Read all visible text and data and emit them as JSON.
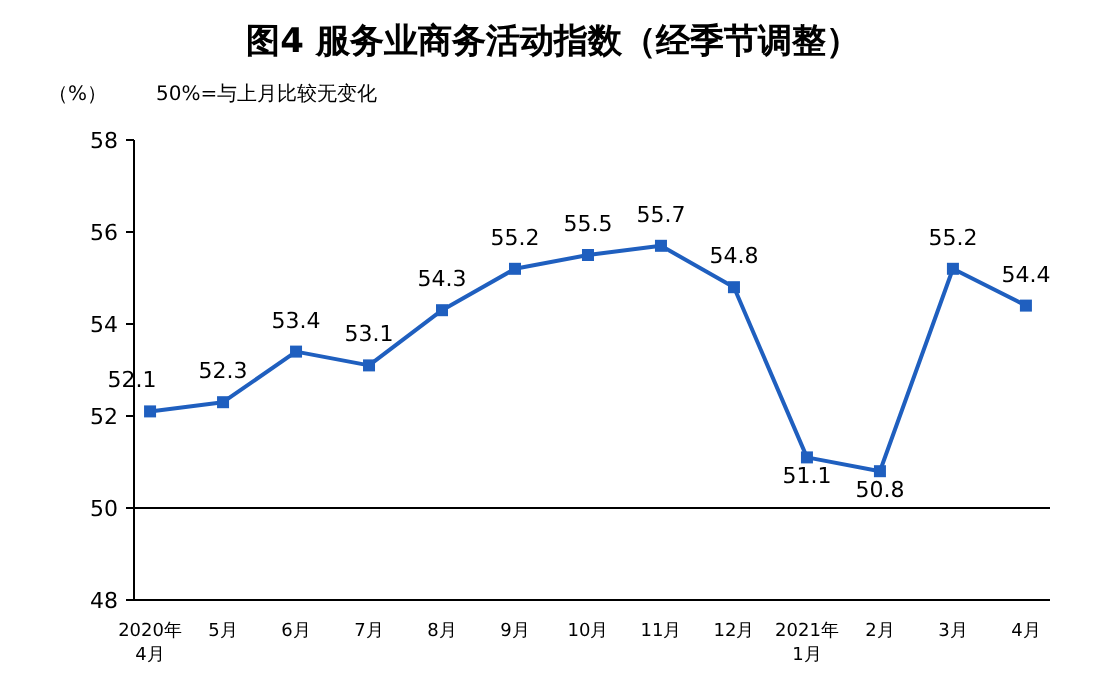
{
  "chart_data": {
    "type": "line",
    "title": "图4  服务业商务活动指数（经季节调整）",
    "ylabel": "（%）",
    "annotations": [
      "50%=与上月比较无变化"
    ],
    "categories": [
      "2020年\n4月",
      "5月",
      "6月",
      "7月",
      "8月",
      "9月",
      "10月",
      "11月",
      "12月",
      "2021年\n1月",
      "2月",
      "3月",
      "4月"
    ],
    "values": [
      52.1,
      52.3,
      53.4,
      53.1,
      54.3,
      55.2,
      55.5,
      55.7,
      54.8,
      51.1,
      50.8,
      55.2,
      54.4
    ],
    "color": "#1f5fbf",
    "marker": "square",
    "line_style": "solid",
    "data_labels": true,
    "grid": false,
    "ylim": [
      48,
      58
    ],
    "yticks": [
      48,
      50,
      52,
      54,
      56,
      58
    ],
    "ref_lines": [
      {
        "axis": "y",
        "value": 50,
        "color": "#000000"
      }
    ]
  }
}
